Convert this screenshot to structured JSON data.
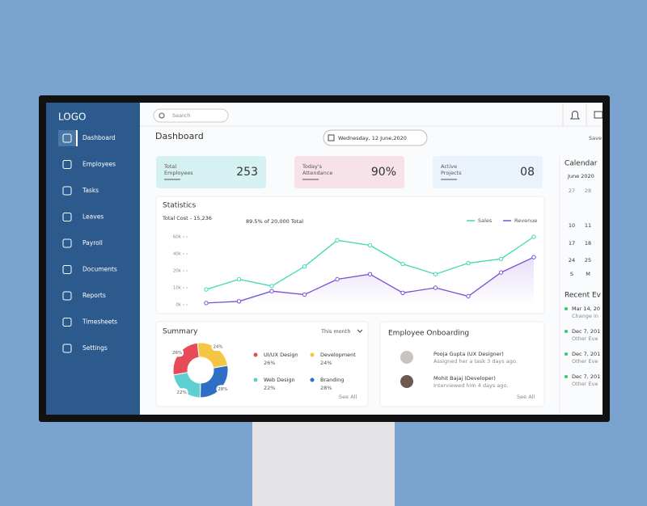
{
  "sidebar": {
    "logo": "LOGO",
    "nav": [
      "Dashboard",
      "Employees",
      "Tasks",
      "Leaves",
      "Payroll",
      "Documents",
      "Reports",
      "Timesheets",
      "Settings"
    ]
  },
  "topbar": {
    "search_placeholder": "Search"
  },
  "header": {
    "title": "Dashboard",
    "date": "Wednesday, 12 June,2020",
    "action": "Save"
  },
  "cards": [
    {
      "label_lines": [
        "Total",
        "Employees"
      ],
      "value": "253"
    },
    {
      "label_lines": [
        "Today's",
        "Attendance"
      ],
      "value": "90%"
    },
    {
      "label_lines": [
        "Active",
        "Projects"
      ],
      "value": "08"
    }
  ],
  "chart_data": [
    {
      "type": "line",
      "title": "Statistics",
      "subtitle": "Total Cost - 15,236",
      "annotation": "89.5% of 20,000 Total",
      "categories": [
        null,
        null,
        null,
        null,
        null,
        null,
        null,
        null,
        null,
        null,
        null
      ],
      "series": [
        {
          "name": "Sales",
          "color": "#3fd9b5",
          "values": [
            9,
            15,
            11,
            25,
            56,
            50,
            28,
            18,
            29,
            34,
            60
          ]
        },
        {
          "name": "Revenue",
          "color": "#7b4fd6",
          "values": [
            1,
            2,
            8,
            6,
            15,
            18,
            7,
            10,
            5,
            19,
            36
          ]
        }
      ],
      "ylim": [
        0,
        60
      ],
      "yticks": [
        {
          "value": 0,
          "label": "0k"
        },
        {
          "value": 10,
          "label": "10k"
        },
        {
          "value": 20,
          "label": "20k"
        },
        {
          "value": 40,
          "label": "40k"
        },
        {
          "value": 60,
          "label": "60k"
        }
      ],
      "legend": "top-right"
    },
    {
      "type": "pie",
      "title": "Summary",
      "period": "This month",
      "link": "See All",
      "categories": [
        "UI/UX Design",
        "Development",
        "Web Design",
        "Branding"
      ],
      "values": [
        26,
        24,
        22,
        28
      ],
      "value_labels": [
        "26%",
        "24%",
        "22%",
        "28%"
      ],
      "colors": [
        "#e64b57",
        "#f5c644",
        "#5fd0d2",
        "#2e6ec4"
      ]
    }
  ],
  "onboarding": {
    "title": "Employee Onboarding",
    "link": "See All",
    "items": [
      {
        "name": "Pooja Gupta (UX Designer)",
        "note": "Assigned her a task 3 days ago."
      },
      {
        "name": "Mohit Bajaj (Developer)",
        "note": "Interviewed him 4 days ago."
      }
    ]
  },
  "calendar": {
    "title": "Calendar",
    "month": "June 2020",
    "rows": [
      [
        "27",
        "28"
      ],
      [
        "10",
        "11"
      ],
      [
        "17",
        "18"
      ],
      [
        "24",
        "25"
      ],
      [
        "S",
        "M"
      ]
    ]
  },
  "events": {
    "title": "Recent Ev",
    "items": [
      {
        "date": "Mar 14, 20",
        "text": "Change in"
      },
      {
        "date": "Dec 7, 201",
        "text": "Other Eve"
      },
      {
        "date": "Dec 7, 201",
        "text": "Other Eve"
      },
      {
        "date": "Dec 7, 201",
        "text": "Other Eve"
      }
    ]
  }
}
